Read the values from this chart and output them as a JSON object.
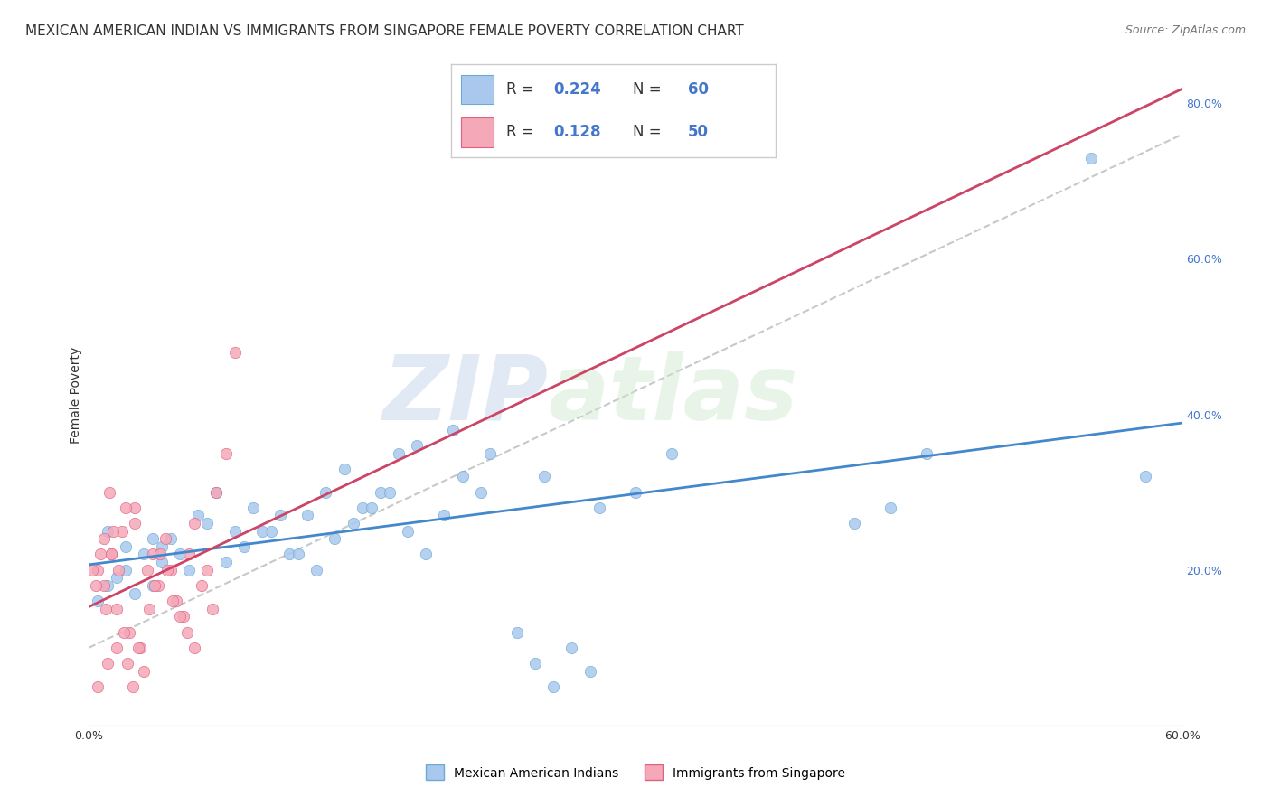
{
  "title": "MEXICAN AMERICAN INDIAN VS IMMIGRANTS FROM SINGAPORE FEMALE POVERTY CORRELATION CHART",
  "source": "Source: ZipAtlas.com",
  "ylabel": "Female Poverty",
  "watermark_1": "ZIP",
  "watermark_2": "atlas",
  "xlim": [
    0,
    0.6
  ],
  "ylim": [
    0,
    0.85
  ],
  "y_ticks_right": [
    0.2,
    0.4,
    0.6,
    0.8
  ],
  "y_tick_labels_right": [
    "20.0%",
    "40.0%",
    "60.0%",
    "80.0%"
  ],
  "group1_color": "#aac8ee",
  "group1_edge_color": "#6aaad4",
  "group2_color": "#f4a8b8",
  "group2_edge_color": "#e06080",
  "trend1_color": "#4488cc",
  "trend2_color": "#cc4466",
  "trend_dashed_color": "#bbbbbb",
  "R1": 0.224,
  "N1": 60,
  "R2": 0.128,
  "N2": 50,
  "legend1_label": "Mexican American Indians",
  "legend2_label": "Immigrants from Singapore",
  "group1_x": [
    0.02,
    0.03,
    0.01,
    0.04,
    0.02,
    0.015,
    0.025,
    0.035,
    0.005,
    0.01,
    0.04,
    0.06,
    0.08,
    0.07,
    0.09,
    0.1,
    0.12,
    0.11,
    0.13,
    0.15,
    0.14,
    0.16,
    0.17,
    0.18,
    0.2,
    0.22,
    0.25,
    0.28,
    0.3,
    0.32,
    0.05,
    0.055,
    0.045,
    0.035,
    0.065,
    0.075,
    0.085,
    0.095,
    0.105,
    0.115,
    0.125,
    0.135,
    0.145,
    0.155,
    0.165,
    0.175,
    0.185,
    0.195,
    0.205,
    0.215,
    0.235,
    0.245,
    0.255,
    0.265,
    0.275,
    0.42,
    0.44,
    0.46,
    0.55,
    0.58
  ],
  "group1_y": [
    0.2,
    0.22,
    0.18,
    0.21,
    0.23,
    0.19,
    0.17,
    0.24,
    0.16,
    0.25,
    0.23,
    0.27,
    0.25,
    0.3,
    0.28,
    0.25,
    0.27,
    0.22,
    0.3,
    0.28,
    0.33,
    0.3,
    0.35,
    0.36,
    0.38,
    0.35,
    0.32,
    0.28,
    0.3,
    0.35,
    0.22,
    0.2,
    0.24,
    0.18,
    0.26,
    0.21,
    0.23,
    0.25,
    0.27,
    0.22,
    0.2,
    0.24,
    0.26,
    0.28,
    0.3,
    0.25,
    0.22,
    0.27,
    0.32,
    0.3,
    0.12,
    0.08,
    0.05,
    0.1,
    0.07,
    0.26,
    0.28,
    0.35,
    0.73,
    0.32
  ],
  "group2_x": [
    0.005,
    0.008,
    0.012,
    0.015,
    0.018,
    0.022,
    0.025,
    0.028,
    0.032,
    0.035,
    0.038,
    0.042,
    0.045,
    0.048,
    0.052,
    0.055,
    0.058,
    0.062,
    0.065,
    0.068,
    0.07,
    0.075,
    0.08,
    0.005,
    0.01,
    0.015,
    0.008,
    0.012,
    0.02,
    0.025,
    0.002,
    0.004,
    0.006,
    0.009,
    0.011,
    0.013,
    0.016,
    0.019,
    0.021,
    0.024,
    0.027,
    0.03,
    0.033,
    0.036,
    0.039,
    0.043,
    0.046,
    0.05,
    0.054,
    0.058
  ],
  "group2_y": [
    0.2,
    0.18,
    0.22,
    0.15,
    0.25,
    0.12,
    0.28,
    0.1,
    0.2,
    0.22,
    0.18,
    0.24,
    0.2,
    0.16,
    0.14,
    0.22,
    0.26,
    0.18,
    0.2,
    0.15,
    0.3,
    0.35,
    0.48,
    0.05,
    0.08,
    0.1,
    0.24,
    0.22,
    0.28,
    0.26,
    0.2,
    0.18,
    0.22,
    0.15,
    0.3,
    0.25,
    0.2,
    0.12,
    0.08,
    0.05,
    0.1,
    0.07,
    0.15,
    0.18,
    0.22,
    0.2,
    0.16,
    0.14,
    0.12,
    0.1
  ],
  "background_color": "#ffffff",
  "grid_color": "#dddddd",
  "title_fontsize": 11,
  "axis_label_fontsize": 10,
  "tick_fontsize": 9,
  "legend_fontsize": 10,
  "marker_size": 80,
  "blue_text_color": "#4477cc"
}
